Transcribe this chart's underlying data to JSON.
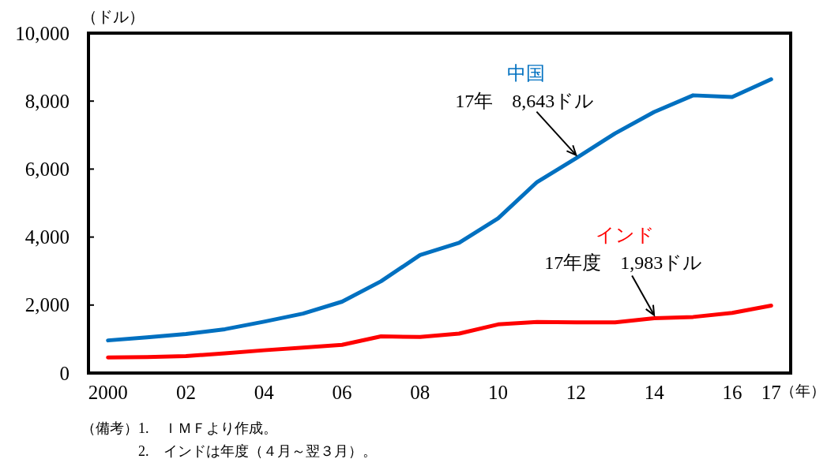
{
  "chart_data": {
    "type": "line",
    "categories": [
      "2000",
      null,
      "02",
      null,
      "04",
      null,
      "06",
      null,
      "08",
      null,
      "10",
      null,
      "12",
      null,
      "14",
      null,
      "16",
      "17"
    ],
    "xlabel": "（年）",
    "ylabel": "（ドル）",
    "ylim": [
      0,
      10000
    ],
    "yticks": [
      0,
      {
        "value": 2000,
        "label": "2,000"
      },
      {
        "value": 4000,
        "label": "4,000"
      },
      {
        "value": 6000,
        "label": "6,000"
      },
      {
        "value": 8000,
        "label": "8,000"
      },
      {
        "value": 10000,
        "label": "10,000"
      }
    ],
    "series": [
      {
        "name": "中国",
        "color": "#0070c0",
        "values": [
          960,
          1050,
          1150,
          1290,
          1510,
          1750,
          2100,
          2700,
          3470,
          3830,
          4550,
          5620,
          6320,
          7050,
          7680,
          8170,
          8120,
          8643
        ]
      },
      {
        "name": "インド",
        "color": "#ff0000",
        "values": [
          460,
          470,
          500,
          580,
          670,
          750,
          830,
          1080,
          1060,
          1160,
          1430,
          1500,
          1490,
          1490,
          1610,
          1650,
          1770,
          1983
        ]
      }
    ],
    "annotations": [
      {
        "text": "17年　8,643ドル",
        "x": "12",
        "y": 6320
      },
      {
        "text": "17年度　1,983ドル",
        "x": "14",
        "y": 1610
      },
      "（備考）1.　ＩＭＦより作成。",
      "2.　インドは年度（４月～翌３月）。"
    ],
    "line_style": "solid"
  }
}
